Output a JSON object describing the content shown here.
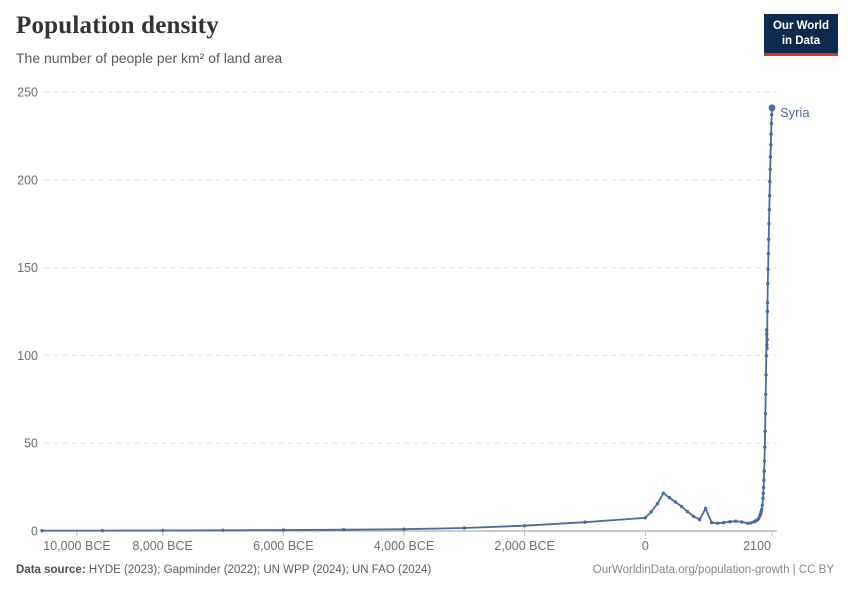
{
  "header": {
    "title": "Population density",
    "subtitle": "The number of people per km² of land area"
  },
  "logo": {
    "line1": "Our World",
    "line2": "in Data",
    "bg": "#0c2a50",
    "accent": "#e0302c",
    "text_color": "#ffffff"
  },
  "footer": {
    "source_label": "Data source:",
    "source_text": " HYDE (2023); Gapminder (2022); UN WPP (2024); UN FAO (2024)",
    "link_text": "OurWorldinData.org/population-growth | CC BY"
  },
  "chart_data": {
    "type": "line",
    "title": "Population density",
    "subtitle": "The number of people per km² of land area",
    "grid": true,
    "end_label": "Syria",
    "x_axis": {
      "domain": [
        -10000,
        2100
      ],
      "ticks": [
        {
          "year": -10000,
          "label": "10,000 BCE"
        },
        {
          "year": -8000,
          "label": "8,000 BCE"
        },
        {
          "year": -6000,
          "label": "6,000 BCE"
        },
        {
          "year": -4000,
          "label": "4,000 BCE"
        },
        {
          "year": -2000,
          "label": "2,000 BCE"
        },
        {
          "year": 0,
          "label": "0"
        },
        {
          "year": 2100,
          "label": "2100"
        }
      ]
    },
    "y_axis": {
      "domain": [
        0,
        250
      ],
      "ticks": [
        0,
        50,
        100,
        150,
        200,
        250
      ]
    },
    "series": [
      {
        "name": "Syria",
        "color": "#4c6a9a",
        "points": [
          [
            -10000,
            0.15
          ],
          [
            -9000,
            0.2
          ],
          [
            -8000,
            0.3
          ],
          [
            -7000,
            0.4
          ],
          [
            -6000,
            0.55
          ],
          [
            -5000,
            0.75
          ],
          [
            -4000,
            1.0
          ],
          [
            -3000,
            1.7
          ],
          [
            -2000,
            3.0
          ],
          [
            -1000,
            5.0
          ],
          [
            0,
            7.5
          ],
          [
            100,
            11
          ],
          [
            200,
            15.5
          ],
          [
            300,
            21.5
          ],
          [
            400,
            19
          ],
          [
            500,
            16.5
          ],
          [
            600,
            14
          ],
          [
            700,
            11
          ],
          [
            800,
            8.3
          ],
          [
            900,
            6.5
          ],
          [
            1000,
            12.8
          ],
          [
            1100,
            4.8
          ],
          [
            1200,
            4.4
          ],
          [
            1300,
            4.8
          ],
          [
            1400,
            5.3
          ],
          [
            1500,
            5.6
          ],
          [
            1600,
            5.2
          ],
          [
            1700,
            4.4
          ],
          [
            1750,
            4.6
          ],
          [
            1800,
            5.2
          ],
          [
            1820,
            5.5
          ],
          [
            1840,
            5.9
          ],
          [
            1860,
            6.3
          ],
          [
            1880,
            7.2
          ],
          [
            1900,
            8.6
          ],
          [
            1910,
            9.6
          ],
          [
            1920,
            10.8
          ],
          [
            1930,
            12.2
          ],
          [
            1940,
            14.6
          ],
          [
            1950,
            18.7
          ],
          [
            1955,
            21.4
          ],
          [
            1960,
            24.8
          ],
          [
            1965,
            29.0
          ],
          [
            1970,
            34.1
          ],
          [
            1975,
            39.9
          ],
          [
            1980,
            47.8
          ],
          [
            1985,
            56.7
          ],
          [
            1990,
            66.9
          ],
          [
            1995,
            77.8
          ],
          [
            2000,
            88.9
          ],
          [
            2005,
            99.8
          ],
          [
            2010,
            114.6
          ],
          [
            2013,
            112.0
          ],
          [
            2015,
            106.0
          ],
          [
            2018,
            104.0
          ],
          [
            2020,
            109.0
          ],
          [
            2023,
            125.0
          ],
          [
            2025,
            130.0
          ],
          [
            2030,
            141.0
          ],
          [
            2035,
            149.0
          ],
          [
            2040,
            158.0
          ],
          [
            2045,
            166.0
          ],
          [
            2050,
            175.0
          ],
          [
            2055,
            183.0
          ],
          [
            2060,
            191.0
          ],
          [
            2065,
            199.0
          ],
          [
            2070,
            206.0
          ],
          [
            2075,
            213.0
          ],
          [
            2080,
            220.0
          ],
          [
            2085,
            226.0
          ],
          [
            2090,
            232.0
          ],
          [
            2095,
            237.0
          ],
          [
            2100,
            241.0
          ]
        ]
      }
    ]
  }
}
